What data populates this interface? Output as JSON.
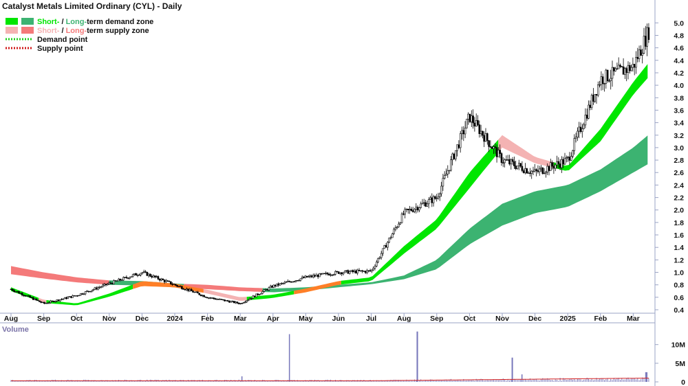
{
  "colors": {
    "short_demand": "#00e600",
    "long_demand": "#3cb371",
    "short_supply": "#f4b3b3",
    "long_supply": "#f47a7a",
    "overlap_orange": "#ff7f27",
    "demand_point": "#18d018",
    "supply_point": "#d01818",
    "volume_bar": "#7777bb",
    "volume_ma": "#d42020",
    "candle": "#000000"
  },
  "chart_data": {
    "type": "candlestick",
    "title": "Catalyst Metals Limited Ordinary (CYL) - Daily",
    "legend": {
      "placement": "top-left",
      "rows": [
        {
          "icon": "demand-zone",
          "part1": "Short-",
          "sep": " / ",
          "part2": "Long-",
          "rest": "term demand zone"
        },
        {
          "icon": "supply-zone",
          "part1": "Short-",
          "sep": " / ",
          "part2": "Long-",
          "rest": "term supply zone"
        },
        {
          "icon": "demand-point",
          "label": "Demand point"
        },
        {
          "icon": "supply-point",
          "label": "Supply point"
        }
      ]
    },
    "x_ticks": [
      "Aug",
      "Sep",
      "Oct",
      "Nov",
      "Dec",
      "2024",
      "Feb",
      "Mar",
      "Apr",
      "May",
      "Jun",
      "Jul",
      "Aug",
      "Sep",
      "Oct",
      "Nov",
      "Dec",
      "2025",
      "Feb",
      "Mar"
    ],
    "price_axis": {
      "min": 0.4,
      "max": 5.0,
      "ticks": [
        "0.4",
        "0.6",
        "0.8",
        "1.0",
        "1.2",
        "1.4",
        "1.6",
        "1.8",
        "2.0",
        "2.2",
        "2.4",
        "2.6",
        "2.8",
        "3.0",
        "3.2",
        "3.4",
        "3.6",
        "3.8",
        "4.0",
        "4.2",
        "4.4",
        "4.6",
        "4.8",
        "5.0"
      ]
    },
    "price_path": {
      "months": [
        0,
        1,
        2,
        3,
        4,
        5,
        6,
        7,
        8,
        9,
        10,
        11,
        12,
        13,
        14,
        15,
        16,
        17,
        18,
        19,
        19.5
      ],
      "close": [
        0.73,
        0.5,
        0.63,
        0.82,
        1.0,
        0.8,
        0.6,
        0.5,
        0.78,
        0.92,
        1.0,
        1.02,
        1.95,
        2.2,
        3.5,
        2.8,
        2.6,
        2.8,
        4.1,
        4.3,
        4.9
      ]
    },
    "short_zone": {
      "months": [
        0,
        1,
        2,
        3,
        4,
        5,
        6,
        7,
        8,
        9,
        10,
        11,
        12,
        13,
        14,
        15,
        16,
        17,
        18,
        19,
        19.5
      ],
      "upper": [
        0.76,
        0.56,
        0.5,
        0.66,
        0.86,
        0.82,
        0.72,
        0.6,
        0.64,
        0.74,
        0.86,
        0.92,
        1.42,
        1.85,
        2.6,
        3.2,
        2.85,
        2.7,
        3.3,
        4.05,
        4.38
      ],
      "lower": [
        0.7,
        0.51,
        0.47,
        0.61,
        0.78,
        0.76,
        0.66,
        0.54,
        0.59,
        0.68,
        0.8,
        0.86,
        1.3,
        1.7,
        2.35,
        3.0,
        2.75,
        2.62,
        3.1,
        3.85,
        4.15
      ]
    },
    "long_zone": {
      "months": [
        0,
        1,
        2,
        3,
        4,
        5,
        6,
        7,
        8,
        9,
        10,
        11,
        12,
        13,
        14,
        15,
        16,
        17,
        18,
        19,
        19.5
      ],
      "upper": [
        1.1,
        1.0,
        0.92,
        0.87,
        0.86,
        0.82,
        0.8,
        0.76,
        0.74,
        0.76,
        0.8,
        0.84,
        0.95,
        1.2,
        1.7,
        2.1,
        2.3,
        2.4,
        2.65,
        3.0,
        3.22
      ],
      "lower": [
        0.97,
        0.9,
        0.84,
        0.8,
        0.79,
        0.76,
        0.73,
        0.7,
        0.68,
        0.71,
        0.76,
        0.81,
        0.89,
        1.05,
        1.45,
        1.75,
        1.95,
        2.05,
        2.3,
        2.6,
        2.75
      ]
    },
    "volume": {
      "title": "Volume",
      "ticks": [
        "0",
        "5M",
        "10M"
      ],
      "max": 14000000,
      "spikes": [
        {
          "month": 7.05,
          "value": 1500000
        },
        {
          "month": 8.5,
          "value": 12800000
        },
        {
          "month": 12.4,
          "value": 13500000
        },
        {
          "month": 15.3,
          "value": 6500000
        },
        {
          "month": 15.6,
          "value": 2000000
        },
        {
          "month": 19.4,
          "value": 2600000
        }
      ]
    }
  }
}
